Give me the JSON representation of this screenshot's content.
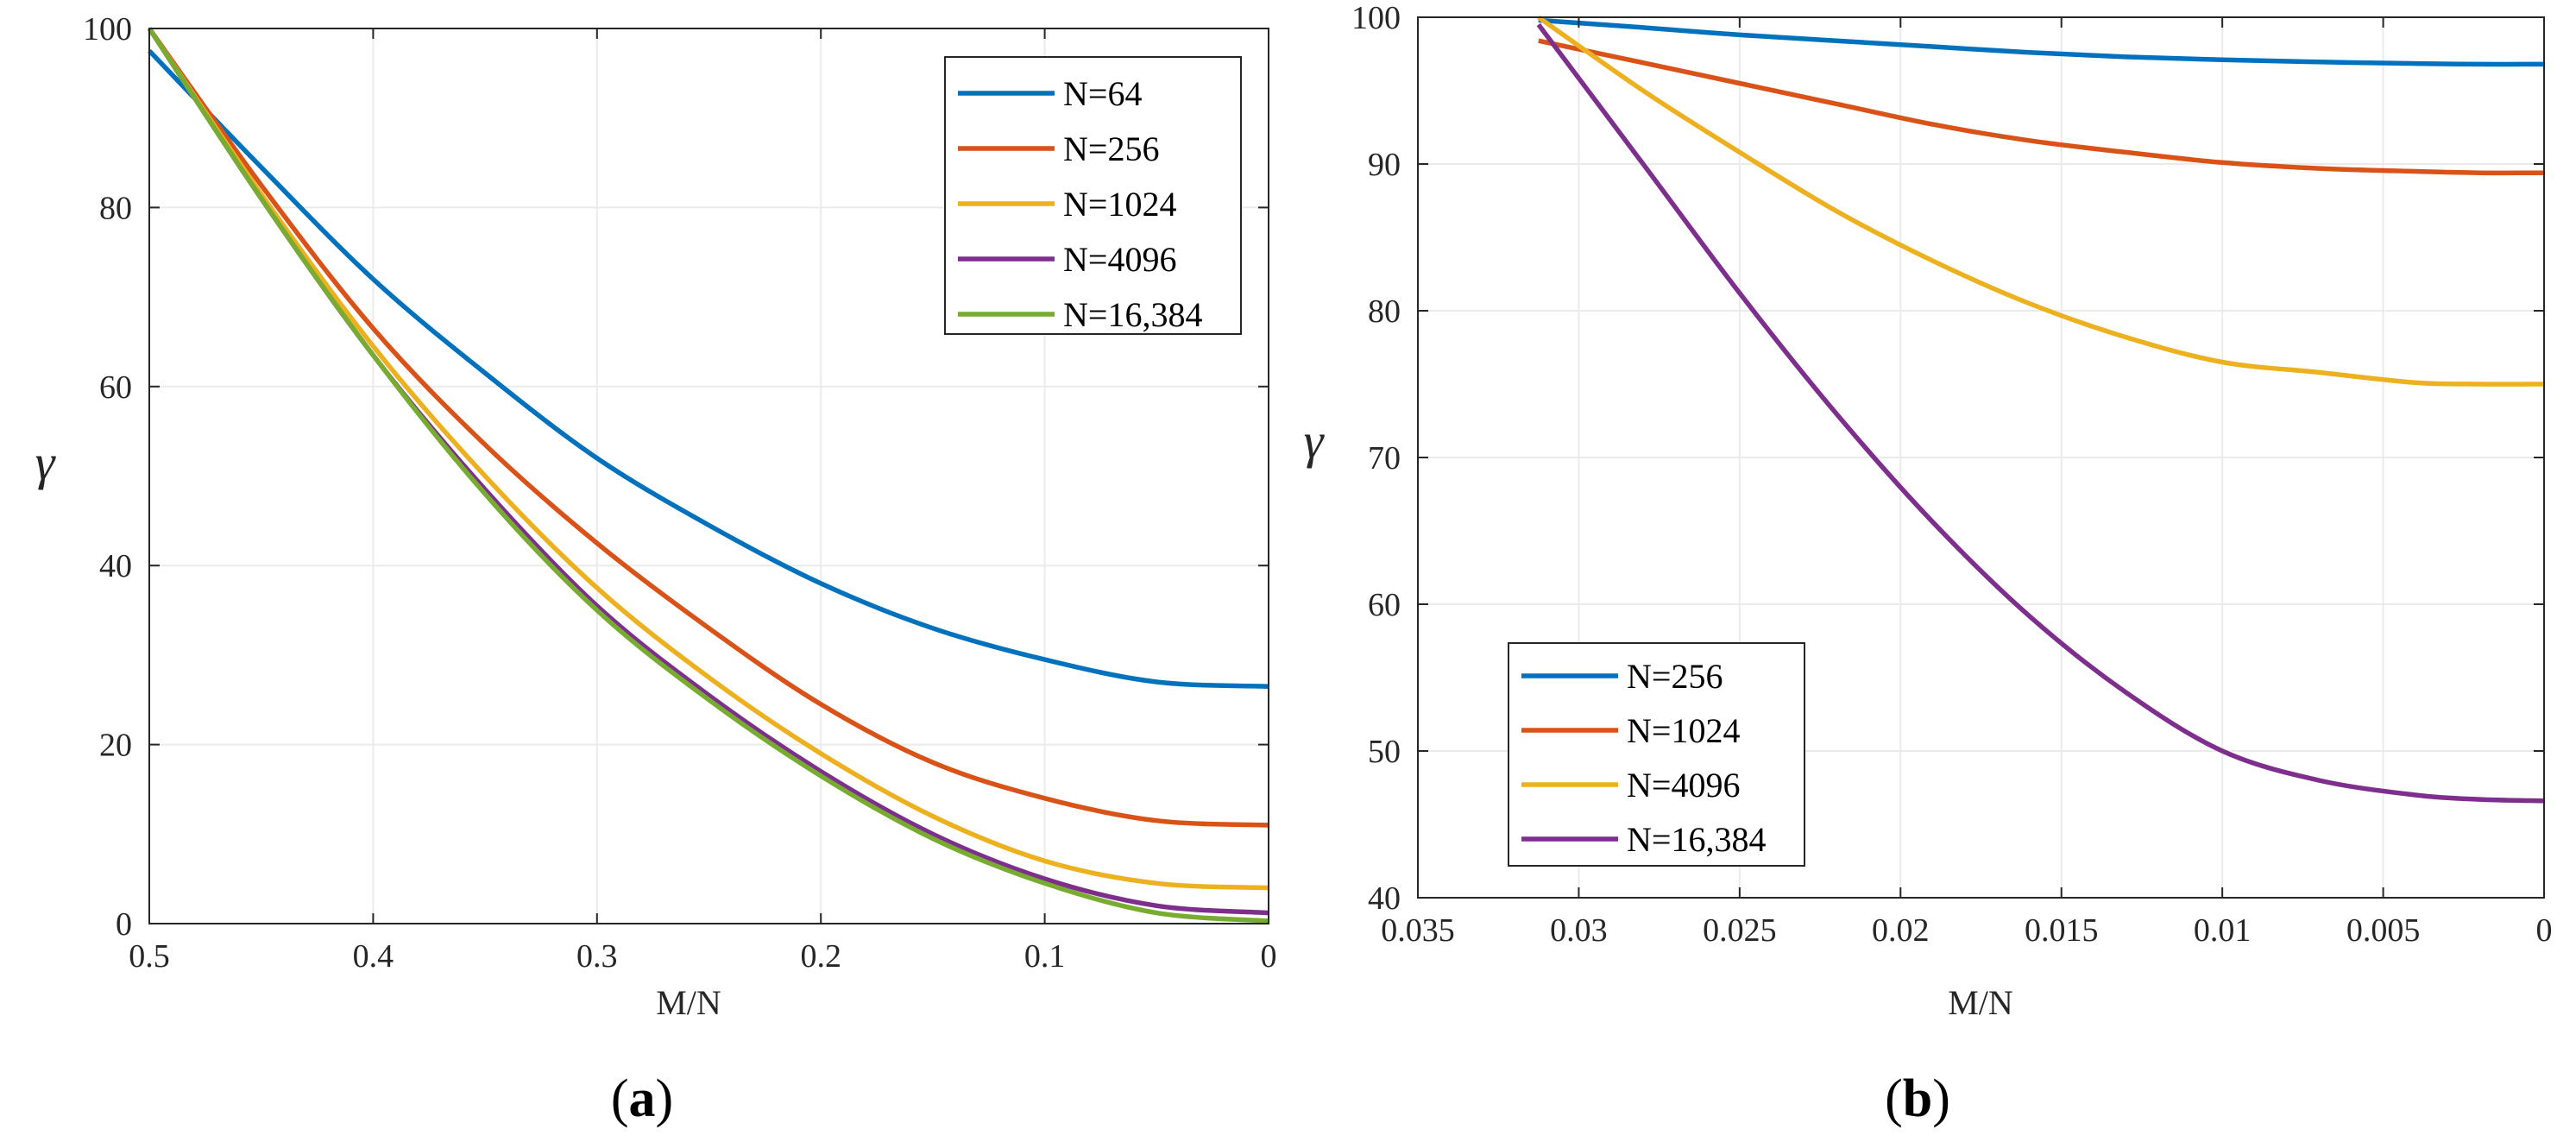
{
  "chart_data": [
    {
      "type": "line",
      "panel": "(a)",
      "panel_paren_open": "(",
      "panel_letter": "a",
      "panel_paren_close": ")",
      "xlabel": "M/N",
      "ylabel": "γ",
      "xlim": [
        0.5,
        0
      ],
      "ylim": [
        0,
        100
      ],
      "xticks": [
        0.5,
        0.4,
        0.3,
        0.2,
        0.1,
        0
      ],
      "xtick_labels": [
        "0.5",
        "0.4",
        "0.3",
        "0.2",
        "0.1",
        "0"
      ],
      "yticks": [
        0,
        20,
        40,
        60,
        80,
        100
      ],
      "ytick_labels": [
        "0",
        "20",
        "40",
        "60",
        "80",
        "100"
      ],
      "grid": true,
      "legend_position": "top-right",
      "x": [
        0.5,
        0.45,
        0.4,
        0.35,
        0.3,
        0.25,
        0.2,
        0.15,
        0.1,
        0.05,
        0.0
      ],
      "series": [
        {
          "name": "N=64",
          "color": "#0072BD",
          "values": [
            97.5,
            84.5,
            72.0,
            61.5,
            52.0,
            44.5,
            38.0,
            33.0,
            29.5,
            27.0,
            26.5
          ]
        },
        {
          "name": "N=256",
          "color": "#D95319",
          "values": [
            100,
            82.5,
            66.5,
            53.5,
            42.5,
            33.0,
            24.5,
            18.0,
            14.0,
            11.5,
            11.0
          ]
        },
        {
          "name": "N=1024",
          "color": "#EDB120",
          "values": [
            100,
            81.5,
            64.5,
            50.0,
            37.5,
            27.5,
            19.0,
            12.0,
            7.0,
            4.5,
            4.0
          ]
        },
        {
          "name": "N=4096",
          "color": "#7E2F8E",
          "values": [
            100,
            81.0,
            63.5,
            48.5,
            35.5,
            25.5,
            17.0,
            10.0,
            5.0,
            2.0,
            1.2
          ]
        },
        {
          "name": "N=16,384",
          "color": "#77AC30",
          "values": [
            100,
            81.0,
            63.5,
            48.0,
            35.0,
            25.0,
            16.5,
            9.5,
            4.5,
            1.2,
            0.3
          ]
        }
      ]
    },
    {
      "type": "line",
      "panel": "(b)",
      "panel_paren_open": "(",
      "panel_letter": "b",
      "panel_paren_close": ")",
      "xlabel": "M/N",
      "ylabel": "γ",
      "xlim": [
        0.035,
        0
      ],
      "ylim": [
        40,
        100
      ],
      "xticks": [
        0.035,
        0.03,
        0.025,
        0.02,
        0.015,
        0.01,
        0.005,
        0
      ],
      "xtick_labels": [
        "0.035",
        "0.03",
        "0.025",
        "0.02",
        "0.015",
        "0.01",
        "0.005",
        "0"
      ],
      "yticks": [
        40,
        50,
        60,
        70,
        80,
        90,
        100
      ],
      "ytick_labels": [
        "40",
        "50",
        "60",
        "70",
        "80",
        "90",
        "100"
      ],
      "grid": true,
      "legend_position": "bottom-left",
      "x": [
        0.03125,
        0.028,
        0.025,
        0.022,
        0.019,
        0.016,
        0.013,
        0.01,
        0.007,
        0.004,
        0.002,
        0.0
      ],
      "series": [
        {
          "name": "N=256",
          "color": "#0072BD",
          "values": [
            99.8,
            99.3,
            98.8,
            98.4,
            98.0,
            97.6,
            97.3,
            97.1,
            96.95,
            96.85,
            96.8,
            96.8
          ]
        },
        {
          "name": "N=1024",
          "color": "#D95319",
          "values": [
            98.4,
            96.9,
            95.5,
            94.1,
            92.7,
            91.6,
            90.8,
            90.1,
            89.7,
            89.5,
            89.4,
            89.4
          ]
        },
        {
          "name": "N=4096",
          "color": "#EDB120",
          "values": [
            100,
            95.0,
            90.8,
            86.8,
            83.4,
            80.5,
            78.2,
            76.5,
            75.8,
            75.1,
            75.0,
            75.0
          ]
        },
        {
          "name": "N=16,384",
          "color": "#7E2F8E",
          "values": [
            99.5,
            90.0,
            81.2,
            73.0,
            65.6,
            59.2,
            54.0,
            50.0,
            48.0,
            47.0,
            46.7,
            46.6
          ]
        }
      ]
    }
  ]
}
